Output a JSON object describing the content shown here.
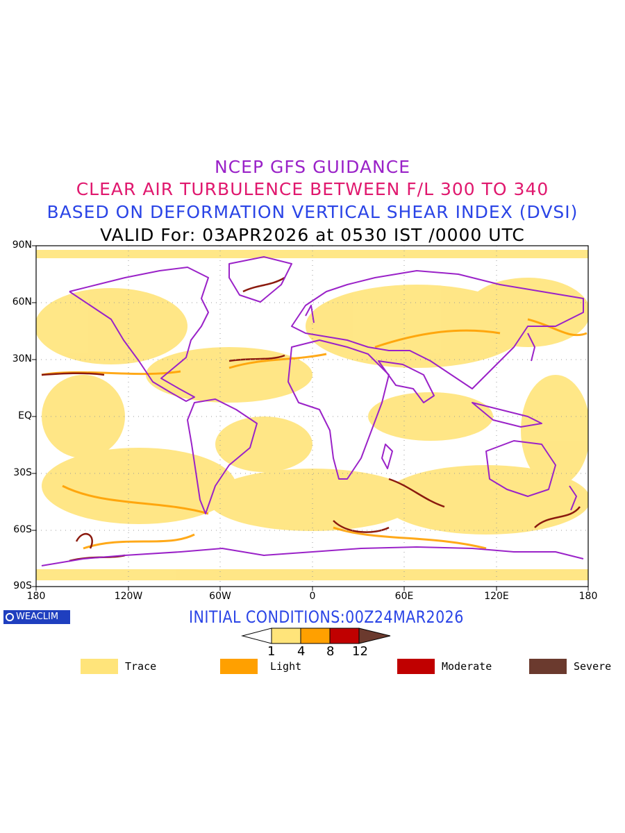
{
  "titles": {
    "line1": "NCEP GFS GUIDANCE",
    "line2": "CLEAR AIR TURBULENCE BETWEEN F/L 300 TO 340",
    "line3": "BASED ON DEFORMATION VERTICAL SHEAR INDEX (DVSI)",
    "line4": "VALID For: 03APR2026 at 0530 IST /0000 UTC"
  },
  "axes": {
    "lat_labels": [
      "90N",
      "60N",
      "30N",
      "EQ",
      "30S",
      "60S",
      "90S"
    ],
    "lon_labels": [
      "180",
      "120W",
      "60W",
      "0",
      "60E",
      "120E",
      "180"
    ]
  },
  "footer": {
    "logo_text": "WEACLIM",
    "initial_conditions": "INITIAL CONDITIONS:00Z24MAR2026"
  },
  "colorbar": {
    "ticks": [
      "1",
      "4",
      "8",
      "12"
    ],
    "colors": [
      "#ffffff",
      "#ffe47a",
      "#ffa000",
      "#c00000",
      "#6b3a2e"
    ]
  },
  "legend": [
    {
      "label": "Trace",
      "color": "#ffe47a"
    },
    {
      "label": "Light",
      "color": "#ffa000"
    },
    {
      "label": "Moderate",
      "color": "#c00000"
    },
    {
      "label": "Severe",
      "color": "#6b3a2e"
    }
  ],
  "colors": {
    "coastline": "#9a22c8",
    "graticule": "#9a9a9a"
  }
}
